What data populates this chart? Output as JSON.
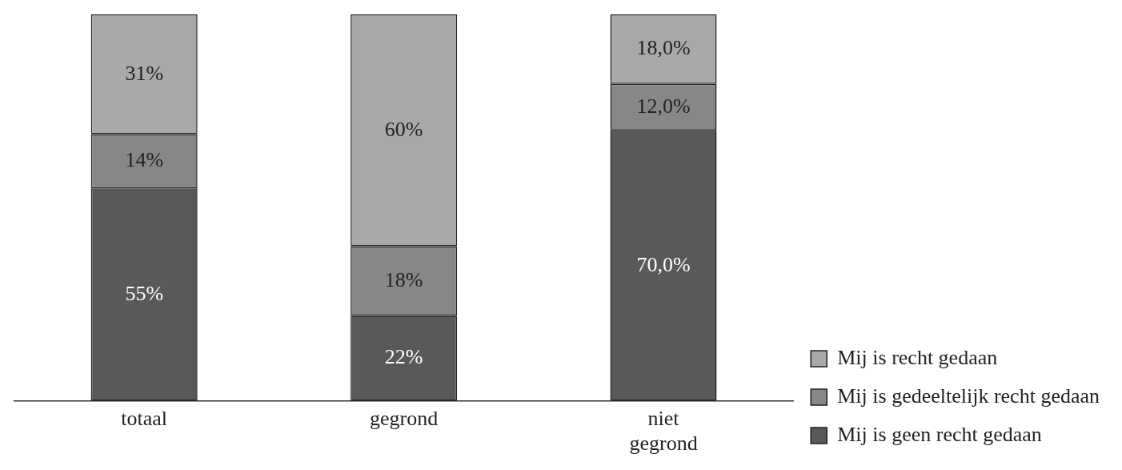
{
  "chart_data": {
    "type": "bar",
    "stacked": true,
    "categories": [
      "totaal",
      "gegrond",
      "niet gegrond"
    ],
    "series": [
      {
        "name": "Mij is geen recht gedaan",
        "color": "#59595b",
        "values": [
          55,
          22,
          70
        ],
        "value_labels": [
          "55%",
          "22%",
          "70,0%"
        ]
      },
      {
        "name": "Mij is gedeeltelijk recht gedaan",
        "color": "#87878a",
        "values": [
          14,
          18,
          12
        ],
        "value_labels": [
          "14%",
          "18%",
          "12,0%"
        ]
      },
      {
        "name": "Mij is recht gedaan",
        "color": "#a9a9ab",
        "values": [
          31,
          60,
          18
        ],
        "value_labels": [
          "31%",
          "60%",
          "18,0%"
        ]
      }
    ],
    "ylim": [
      0,
      100
    ],
    "tick_labels": "x",
    "grid": false,
    "legend": "bottom right"
  }
}
